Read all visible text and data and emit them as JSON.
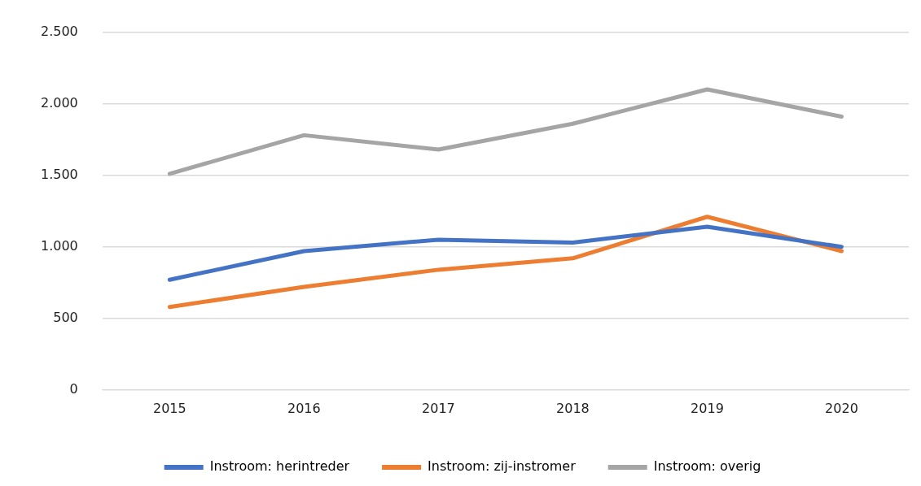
{
  "chart_data": {
    "type": "line",
    "categories": [
      "2015",
      "2016",
      "2017",
      "2018",
      "2019",
      "2020"
    ],
    "series": [
      {
        "name": "Instroom: herintreder",
        "color": "#4472c4",
        "values": [
          770,
          970,
          1050,
          1030,
          1140,
          1000
        ]
      },
      {
        "name": "Instroom: zij-instromer",
        "color": "#ed7d31",
        "values": [
          580,
          720,
          840,
          920,
          1210,
          970
        ]
      },
      {
        "name": "Instroom: overig",
        "color": "#a5a5a5",
        "values": [
          1510,
          1780,
          1680,
          1860,
          2100,
          1910
        ]
      }
    ],
    "ylim": [
      0,
      2500
    ],
    "yticks": [
      {
        "value": 0,
        "label": "0"
      },
      {
        "value": 500,
        "label": "500"
      },
      {
        "value": 1000,
        "label": "1.000"
      },
      {
        "value": 1500,
        "label": "1.500"
      },
      {
        "value": 2000,
        "label": "2.000"
      },
      {
        "value": 2500,
        "label": "2.500"
      }
    ],
    "grid": "y",
    "legend": "bottom",
    "marker": "none",
    "line_style": "solid"
  }
}
